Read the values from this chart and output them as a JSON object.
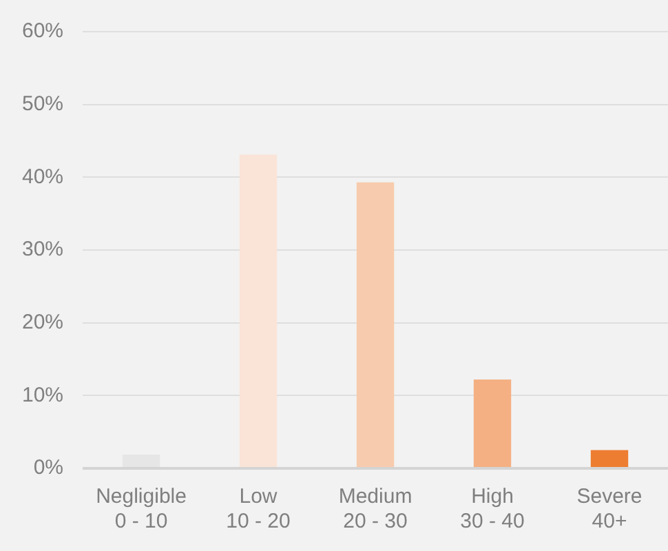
{
  "chart_data": {
    "type": "bar",
    "categories": [
      "Negligible\n0 - 10",
      "Low\n10 - 20",
      "Medium\n20 - 30",
      "High\n30 - 40",
      "Severe\n40+"
    ],
    "values": [
      1.9,
      43.1,
      39.3,
      12.2,
      2.5
    ],
    "colors": [
      "#e6e6e6",
      "#fae4d7",
      "#f7cbad",
      "#f4b083",
      "#ed7d31"
    ],
    "ylim": [
      0,
      60
    ],
    "yticks": [
      {
        "value": 0,
        "label": "0%"
      },
      {
        "value": 10,
        "label": "10%"
      },
      {
        "value": 20,
        "label": "20%"
      },
      {
        "value": 30,
        "label": "30%"
      },
      {
        "value": 40,
        "label": "40%"
      },
      {
        "value": 50,
        "label": "50%"
      },
      {
        "value": 60,
        "label": "60%"
      }
    ],
    "grid": "y"
  }
}
